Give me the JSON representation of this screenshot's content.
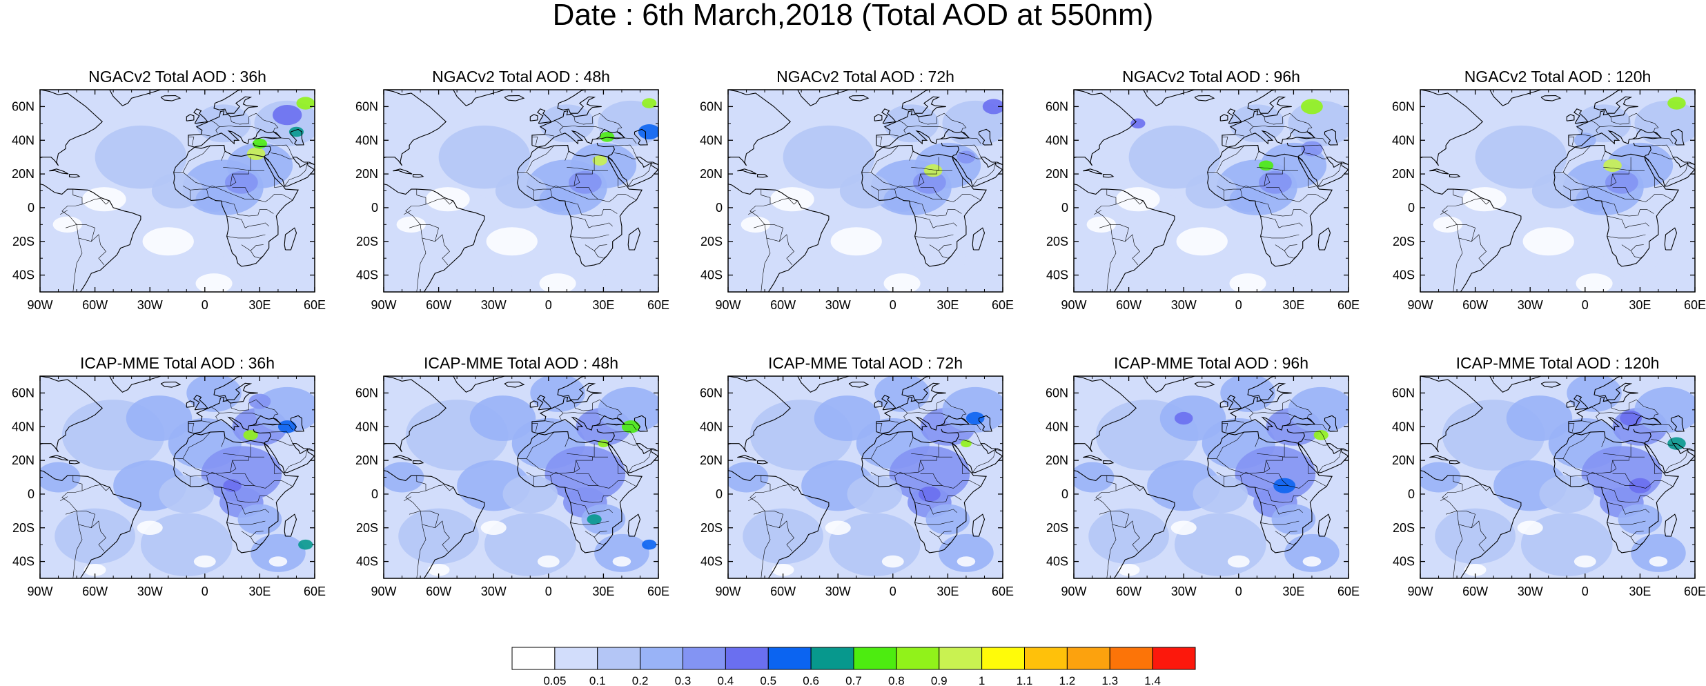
{
  "title": "Date : 6th March,2018 (Total AOD at 550nm)",
  "lon_ticks": [
    "90W",
    "60W",
    "30W",
    "0",
    "30E",
    "60E"
  ],
  "lat_ticks": [
    "60N",
    "40N",
    "20N",
    "0",
    "20S",
    "40S"
  ],
  "map_extent": {
    "lon": [
      -90,
      60
    ],
    "lat": [
      -50,
      70
    ]
  },
  "panels": [
    {
      "model": "NGACv2",
      "title": "NGACv2 Total AOD : 36h",
      "lead_hours": 36
    },
    {
      "model": "NGACv2",
      "title": "NGACv2 Total AOD : 48h",
      "lead_hours": 48
    },
    {
      "model": "NGACv2",
      "title": "NGACv2 Total AOD : 72h",
      "lead_hours": 72
    },
    {
      "model": "NGACv2",
      "title": "NGACv2 Total AOD : 96h",
      "lead_hours": 96
    },
    {
      "model": "NGACv2",
      "title": "NGACv2 Total AOD : 120h",
      "lead_hours": 120
    },
    {
      "model": "ICAP-MME",
      "title": "ICAP-MME Total AOD : 36h",
      "lead_hours": 36
    },
    {
      "model": "ICAP-MME",
      "title": "ICAP-MME Total AOD : 48h",
      "lead_hours": 48
    },
    {
      "model": "ICAP-MME",
      "title": "ICAP-MME Total AOD : 72h",
      "lead_hours": 72
    },
    {
      "model": "ICAP-MME",
      "title": "ICAP-MME Total AOD : 96h",
      "lead_hours": 96
    },
    {
      "model": "ICAP-MME",
      "title": "ICAP-MME Total AOD : 120h",
      "lead_hours": 120
    }
  ],
  "colorbar": {
    "labels": [
      "0.05",
      "0.1",
      "0.2",
      "0.3",
      "0.4",
      "0.5",
      "0.6",
      "0.7",
      "0.8",
      "0.9",
      "1",
      "1.1",
      "1.2",
      "1.3",
      "1.4"
    ],
    "colors": [
      "#ffffff",
      "#d2ddfb",
      "#b4c6f6",
      "#99b3f7",
      "#8394f3",
      "#6a6ff0",
      "#0b64f1",
      "#07988d",
      "#4dec10",
      "#91f21a",
      "#c9f251",
      "#fffb09",
      "#ffc10a",
      "#fca20e",
      "#fc7408",
      "#fc180c"
    ]
  },
  "colors": {
    "background": "#ffffff",
    "ocean_haze": "#d2ddfb",
    "coastline": "#000000",
    "dust_core": "#c9f251"
  }
}
